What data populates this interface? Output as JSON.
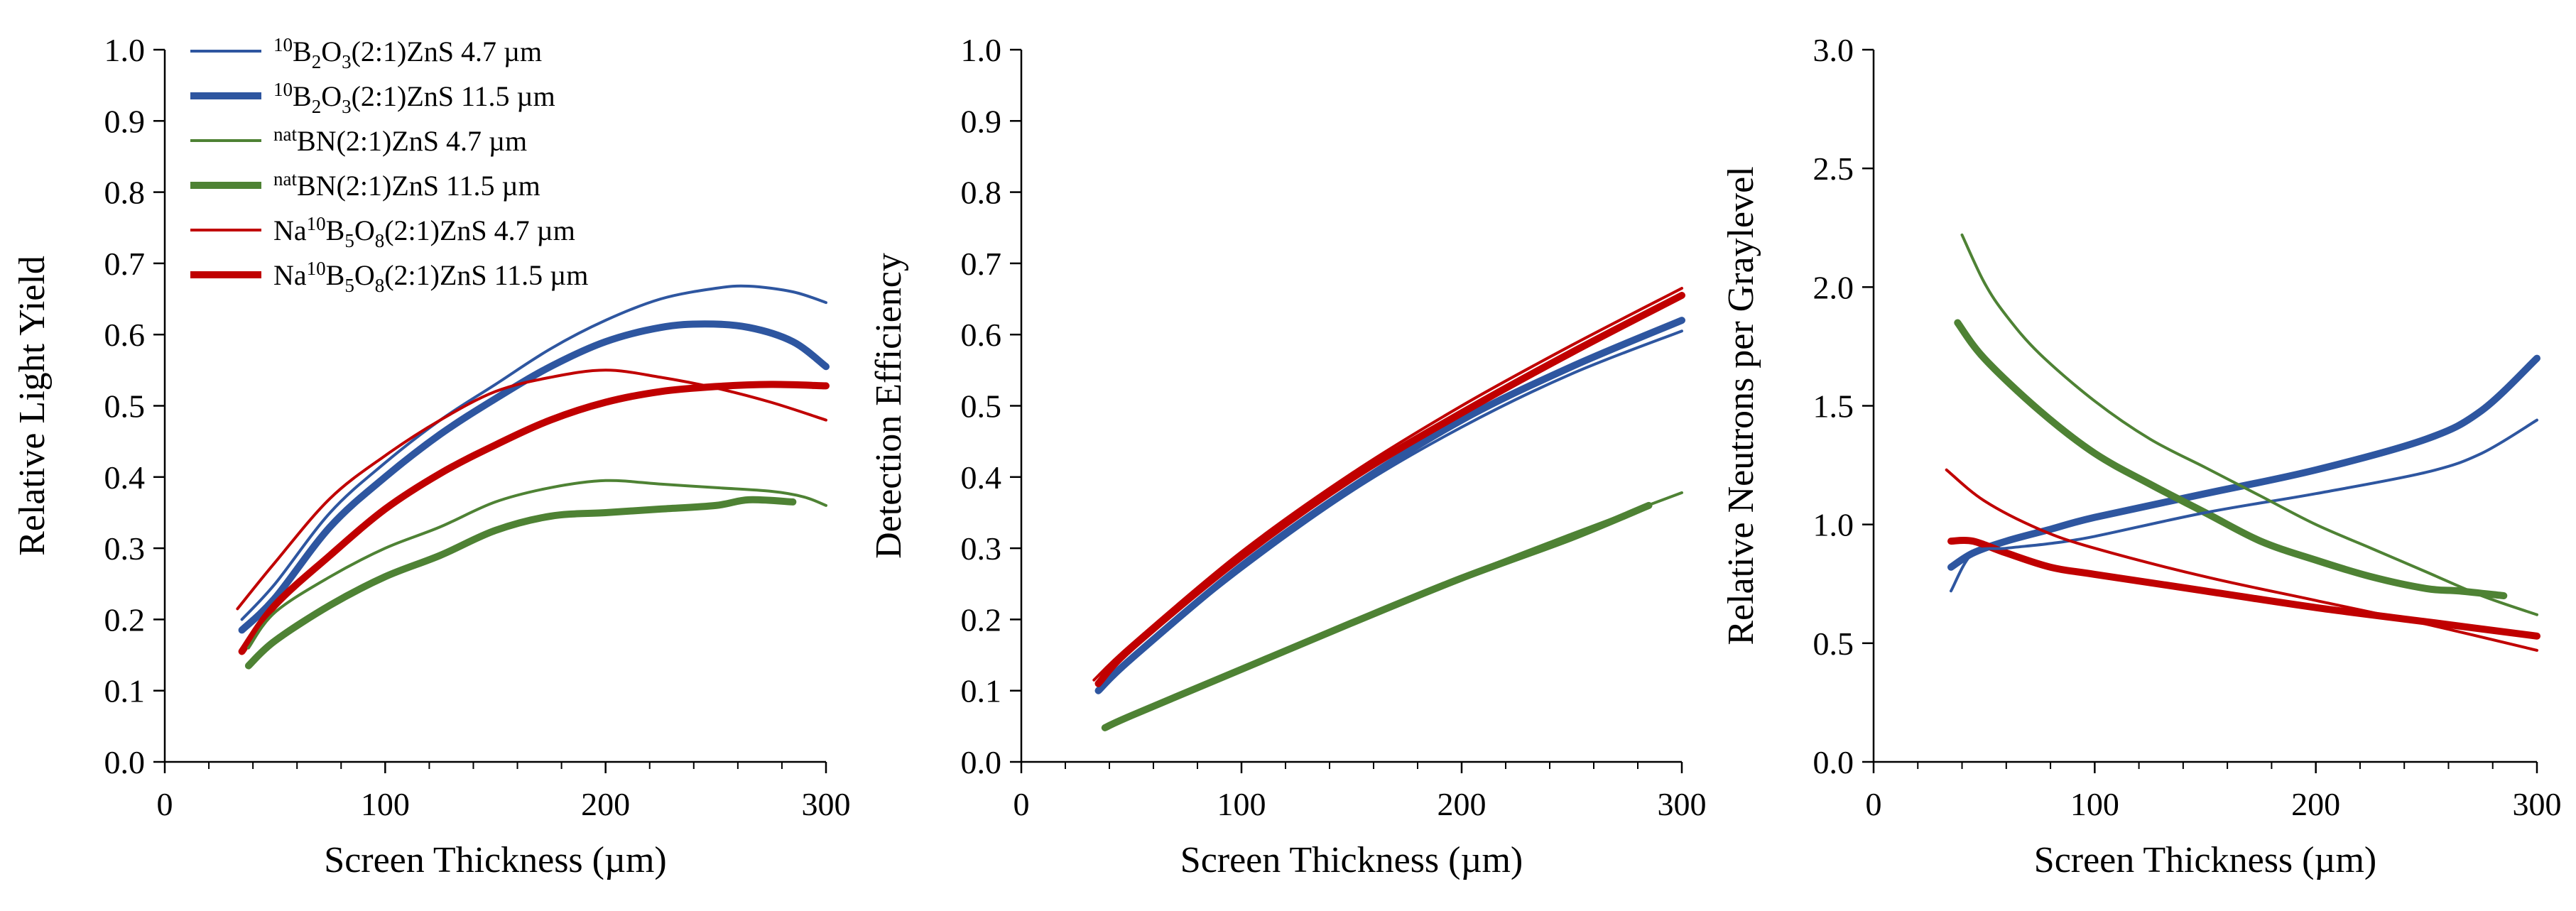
{
  "colors": {
    "blue": "#2e56a0",
    "green": "#4e8234",
    "red": "#c00000"
  },
  "legend": [
    {
      "series_index": 0,
      "parts": [
        [
          "sup",
          "10"
        ],
        [
          "n",
          "B"
        ],
        [
          "sub",
          "2"
        ],
        [
          "n",
          "O"
        ],
        [
          "sub",
          "3"
        ],
        [
          "n",
          "(2:1)ZnS 4.7 µm"
        ]
      ]
    },
    {
      "series_index": 1,
      "parts": [
        [
          "sup",
          "10"
        ],
        [
          "n",
          "B"
        ],
        [
          "sub",
          "2"
        ],
        [
          "n",
          "O"
        ],
        [
          "sub",
          "3"
        ],
        [
          "n",
          "(2:1)ZnS 11.5 µm"
        ]
      ]
    },
    {
      "series_index": 2,
      "parts": [
        [
          "sup",
          "nat"
        ],
        [
          "n",
          "BN(2:1)ZnS 4.7 µm"
        ]
      ]
    },
    {
      "series_index": 3,
      "parts": [
        [
          "sup",
          "nat"
        ],
        [
          "n",
          "BN(2:1)ZnS 11.5 µm"
        ]
      ]
    },
    {
      "series_index": 4,
      "parts": [
        [
          "n",
          "Na"
        ],
        [
          "sup",
          "10"
        ],
        [
          "n",
          "B"
        ],
        [
          "sub",
          "5"
        ],
        [
          "n",
          "O"
        ],
        [
          "sub",
          "8"
        ],
        [
          "n",
          "(2:1)ZnS 4.7 µm"
        ]
      ]
    },
    {
      "series_index": 5,
      "parts": [
        [
          "n",
          "Na"
        ],
        [
          "sup",
          "10"
        ],
        [
          "n",
          "B"
        ],
        [
          "sub",
          "5"
        ],
        [
          "n",
          "O"
        ],
        [
          "sub",
          "8"
        ],
        [
          "n",
          "(2:1)ZnS 11.5 µm"
        ]
      ]
    }
  ],
  "chart_data": [
    {
      "type": "line",
      "title": "",
      "xlabel": "Screen Thickness (µm)",
      "ylabel": "Relative Light Yield",
      "xlim": [
        0,
        300
      ],
      "ylim": [
        0,
        1.0
      ],
      "xticks": [
        0,
        100,
        200,
        300
      ],
      "xtick_labels": [
        "0",
        "100",
        "200",
        "300"
      ],
      "yticks": [
        0,
        0.1,
        0.2,
        0.3,
        0.4,
        0.5,
        0.6,
        0.7,
        0.8,
        0.9,
        1.0
      ],
      "ytick_labels": [
        "0.0",
        "0.1",
        "0.2",
        "0.3",
        "0.4",
        "0.5",
        "0.6",
        "0.7",
        "0.8",
        "0.9",
        "1.0"
      ],
      "series": [
        {
          "name": "10B2O3(2:1)ZnS 4.7 µm",
          "color": "blue",
          "weight": "thin",
          "x": [
            35,
            50,
            75,
            100,
            125,
            150,
            175,
            200,
            225,
            250,
            265,
            285,
            300
          ],
          "y": [
            0.2,
            0.25,
            0.35,
            0.42,
            0.48,
            0.53,
            0.58,
            0.62,
            0.65,
            0.665,
            0.668,
            0.66,
            0.645
          ]
        },
        {
          "name": "10B2O3(2:1)ZnS 11.5 µm",
          "color": "blue",
          "weight": "thick",
          "x": [
            35,
            50,
            75,
            100,
            125,
            150,
            175,
            200,
            225,
            245,
            265,
            285,
            300
          ],
          "y": [
            0.185,
            0.23,
            0.33,
            0.4,
            0.46,
            0.51,
            0.555,
            0.59,
            0.61,
            0.615,
            0.61,
            0.59,
            0.555
          ]
        },
        {
          "name": "natBN(2:1)ZnS 4.7 µm",
          "color": "green",
          "weight": "thin",
          "x": [
            38,
            50,
            75,
            100,
            125,
            150,
            175,
            200,
            225,
            250,
            275,
            290,
            300
          ],
          "y": [
            0.16,
            0.21,
            0.26,
            0.3,
            0.33,
            0.365,
            0.385,
            0.395,
            0.39,
            0.385,
            0.38,
            0.372,
            0.36
          ]
        },
        {
          "name": "natBN(2:1)ZnS 11.5 µm",
          "color": "green",
          "weight": "thick",
          "x": [
            38,
            50,
            75,
            100,
            125,
            150,
            175,
            200,
            225,
            250,
            265,
            285
          ],
          "y": [
            0.135,
            0.17,
            0.22,
            0.26,
            0.29,
            0.325,
            0.345,
            0.35,
            0.355,
            0.36,
            0.368,
            0.365
          ]
        },
        {
          "name": "Na10B5O8(2:1)ZnS 4.7 µm",
          "color": "red",
          "weight": "thin",
          "x": [
            33,
            50,
            75,
            100,
            125,
            150,
            175,
            200,
            225,
            250,
            275,
            300
          ],
          "y": [
            0.215,
            0.28,
            0.37,
            0.43,
            0.48,
            0.52,
            0.54,
            0.55,
            0.54,
            0.525,
            0.505,
            0.48
          ]
        },
        {
          "name": "Na10B5O8(2:1)ZnS 11.5 µm",
          "color": "red",
          "weight": "thick",
          "x": [
            35,
            50,
            75,
            100,
            125,
            150,
            175,
            200,
            225,
            250,
            275,
            300
          ],
          "y": [
            0.155,
            0.22,
            0.29,
            0.355,
            0.405,
            0.445,
            0.48,
            0.505,
            0.52,
            0.527,
            0.53,
            0.528
          ]
        }
      ]
    },
    {
      "type": "line",
      "title": "",
      "xlabel": "Screen Thickness (µm)",
      "ylabel": "Detection Efficiency",
      "xlim": [
        0,
        300
      ],
      "ylim": [
        0,
        1.0
      ],
      "xticks": [
        0,
        100,
        200,
        300
      ],
      "xtick_labels": [
        "0",
        "100",
        "200",
        "300"
      ],
      "yticks": [
        0,
        0.1,
        0.2,
        0.3,
        0.4,
        0.5,
        0.6,
        0.7,
        0.8,
        0.9,
        1.0
      ],
      "ytick_labels": [
        "0.0",
        "0.1",
        "0.2",
        "0.3",
        "0.4",
        "0.5",
        "0.6",
        "0.7",
        "0.8",
        "0.9",
        "1.0"
      ],
      "series": [
        {
          "name": "10B2O3(2:1)ZnS 4.7 µm",
          "color": "blue",
          "weight": "thin",
          "x": [
            35,
            50,
            100,
            150,
            200,
            250,
            300
          ],
          "y": [
            0.1,
            0.145,
            0.27,
            0.38,
            0.47,
            0.545,
            0.605
          ]
        },
        {
          "name": "10B2O3(2:1)ZnS 11.5 µm",
          "color": "blue",
          "weight": "thick",
          "x": [
            35,
            50,
            100,
            150,
            200,
            250,
            300
          ],
          "y": [
            0.1,
            0.145,
            0.275,
            0.385,
            0.48,
            0.555,
            0.62
          ]
        },
        {
          "name": "natBN(2:1)ZnS 4.7 µm",
          "color": "green",
          "weight": "thin",
          "x": [
            38,
            50,
            100,
            150,
            200,
            250,
            300
          ],
          "y": [
            0.048,
            0.065,
            0.13,
            0.195,
            0.26,
            0.32,
            0.378
          ]
        },
        {
          "name": "natBN(2:1)ZnS 11.5 µm",
          "color": "green",
          "weight": "thick",
          "x": [
            38,
            50,
            100,
            150,
            200,
            250,
            285
          ],
          "y": [
            0.048,
            0.065,
            0.13,
            0.195,
            0.258,
            0.315,
            0.36
          ]
        },
        {
          "name": "Na10B5O8(2:1)ZnS 4.7 µm",
          "color": "red",
          "weight": "thin",
          "x": [
            33,
            50,
            100,
            150,
            200,
            250,
            300
          ],
          "y": [
            0.115,
            0.165,
            0.295,
            0.405,
            0.5,
            0.585,
            0.665
          ]
        },
        {
          "name": "Na10B5O8(2:1)ZnS 11.5 µm",
          "color": "red",
          "weight": "thick",
          "x": [
            35,
            50,
            100,
            150,
            200,
            250,
            300
          ],
          "y": [
            0.11,
            0.16,
            0.288,
            0.398,
            0.49,
            0.575,
            0.655
          ]
        }
      ]
    },
    {
      "type": "line",
      "title": "",
      "xlabel": "Screen Thickness (µm)",
      "ylabel": "Relative Neutrons per Graylevel",
      "xlim": [
        0,
        300
      ],
      "ylim": [
        0,
        3.0
      ],
      "xticks": [
        0,
        100,
        200,
        300
      ],
      "xtick_labels": [
        "0",
        "100",
        "200",
        "300"
      ],
      "yticks": [
        0,
        0.5,
        1.0,
        1.5,
        2.0,
        2.5,
        3.0
      ],
      "ytick_labels": [
        "0.0",
        "0.5",
        "1.0",
        "1.5",
        "2.0",
        "2.5",
        "3.0"
      ],
      "series": [
        {
          "name": "10B2O3(2:1)ZnS 4.7 µm",
          "color": "blue",
          "weight": "thin",
          "x": [
            35,
            45,
            60,
            80,
            100,
            150,
            200,
            250,
            275,
            300
          ],
          "y": [
            0.72,
            0.88,
            0.9,
            0.92,
            0.95,
            1.05,
            1.13,
            1.22,
            1.3,
            1.44
          ]
        },
        {
          "name": "10B2O3(2:1)ZnS 11.5 µm",
          "color": "blue",
          "weight": "thick",
          "x": [
            35,
            45,
            60,
            80,
            100,
            150,
            200,
            250,
            275,
            300
          ],
          "y": [
            0.82,
            0.88,
            0.93,
            0.98,
            1.03,
            1.13,
            1.23,
            1.36,
            1.48,
            1.7
          ]
        },
        {
          "name": "natBN(2:1)ZnS 4.7 µm",
          "color": "green",
          "weight": "thin",
          "x": [
            40,
            50,
            60,
            75,
            100,
            125,
            150,
            175,
            200,
            225,
            250,
            275,
            300
          ],
          "y": [
            2.22,
            2.02,
            1.88,
            1.72,
            1.52,
            1.36,
            1.24,
            1.12,
            1.0,
            0.9,
            0.8,
            0.7,
            0.62
          ]
        },
        {
          "name": "natBN(2:1)ZnS 11.5 µm",
          "color": "green",
          "weight": "thick",
          "x": [
            38,
            50,
            75,
            100,
            125,
            150,
            175,
            200,
            225,
            250,
            265,
            285
          ],
          "y": [
            1.85,
            1.7,
            1.48,
            1.3,
            1.17,
            1.05,
            0.93,
            0.85,
            0.78,
            0.73,
            0.72,
            0.7
          ]
        },
        {
          "name": "Na10B5O8(2:1)ZnS 4.7 µm",
          "color": "red",
          "weight": "thin",
          "x": [
            33,
            50,
            75,
            100,
            150,
            200,
            250,
            300
          ],
          "y": [
            1.23,
            1.1,
            0.98,
            0.9,
            0.78,
            0.68,
            0.58,
            0.47
          ]
        },
        {
          "name": "Na10B5O8(2:1)ZnS 11.5 µm",
          "color": "red",
          "weight": "thick",
          "x": [
            35,
            45,
            60,
            80,
            100,
            150,
            200,
            250,
            300
          ],
          "y": [
            0.93,
            0.93,
            0.88,
            0.82,
            0.79,
            0.72,
            0.65,
            0.59,
            0.53
          ]
        }
      ]
    }
  ]
}
